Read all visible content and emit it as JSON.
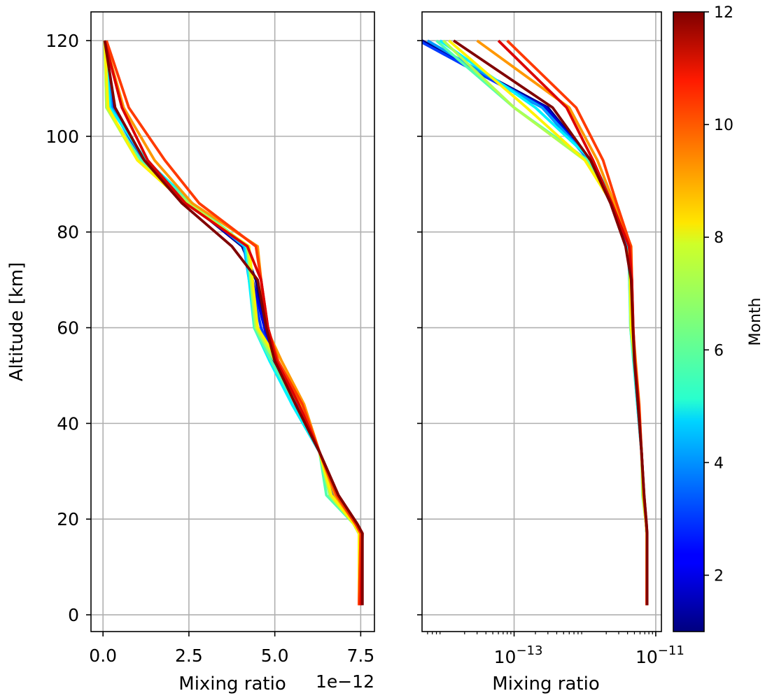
{
  "chart_data": [
    {
      "type": "line",
      "panel": "linear",
      "title": "",
      "xlabel": "Mixing ratio",
      "x_offset_text": "1e−12",
      "ylabel": "Altitude [km]",
      "xlim": [
        -0.35,
        7.9
      ],
      "ylim": [
        -3.5,
        126
      ],
      "x_unit_multiplier": 1e-12,
      "xscale": "linear",
      "xticks": [
        0.0,
        2.5,
        5.0,
        7.5
      ],
      "xtick_labels": [
        "0.0",
        "2.5",
        "5.0",
        "7.5"
      ],
      "yticks": [
        0,
        20,
        40,
        60,
        80,
        100,
        120
      ],
      "ytick_labels": [
        "0",
        "20",
        "40",
        "60",
        "80",
        "100",
        "120"
      ],
      "grid": true,
      "altitude_km": [
        2,
        17,
        19,
        25,
        34,
        44,
        53,
        60,
        70,
        77,
        86,
        95,
        106,
        120
      ],
      "series": [
        {
          "color_value": 1,
          "x": [
            7.45,
            7.45,
            7.3,
            6.8,
            6.3,
            5.6,
            4.95,
            4.7,
            4.45,
            4.05,
            2.5,
            1.2,
            0.3,
            0.05
          ]
        },
        {
          "color_value": 2,
          "x": [
            7.45,
            7.45,
            7.3,
            6.75,
            6.3,
            5.65,
            5.0,
            4.7,
            4.35,
            4.1,
            2.5,
            1.2,
            0.3,
            0.05
          ]
        },
        {
          "color_value": 3,
          "x": [
            7.45,
            7.45,
            7.3,
            6.7,
            6.3,
            5.6,
            5.0,
            4.6,
            4.3,
            4.15,
            2.6,
            1.15,
            0.25,
            0.05
          ]
        },
        {
          "color_value": 4,
          "x": [
            7.45,
            7.45,
            7.3,
            6.6,
            6.3,
            5.5,
            4.9,
            4.5,
            4.25,
            4.1,
            2.6,
            1.2,
            0.25,
            0.05
          ]
        },
        {
          "color_value": 5,
          "x": [
            7.45,
            7.45,
            7.3,
            6.6,
            6.3,
            5.5,
            4.85,
            4.4,
            4.25,
            4.15,
            2.6,
            1.25,
            0.2,
            0.05
          ]
        },
        {
          "color_value": 6,
          "x": [
            7.45,
            7.45,
            7.3,
            6.5,
            6.3,
            5.6,
            4.9,
            4.4,
            4.3,
            4.2,
            2.6,
            1.1,
            0.1,
            0.05
          ]
        },
        {
          "color_value": 7,
          "x": [
            7.45,
            7.45,
            7.3,
            6.6,
            6.3,
            5.7,
            5.0,
            4.45,
            4.3,
            4.2,
            2.5,
            1.0,
            0.1,
            0.05
          ]
        },
        {
          "color_value": 8,
          "x": [
            7.45,
            7.45,
            7.3,
            6.65,
            6.3,
            5.75,
            5.1,
            4.5,
            4.35,
            4.25,
            2.4,
            1.0,
            0.15,
            0.05
          ]
        },
        {
          "color_value": 9,
          "x": [
            7.45,
            7.5,
            7.35,
            6.75,
            6.3,
            5.85,
            5.2,
            4.75,
            4.6,
            4.5,
            2.6,
            1.5,
            0.6,
            0.05
          ]
        },
        {
          "color_value": 10,
          "x": [
            7.45,
            7.5,
            7.35,
            6.8,
            6.3,
            5.8,
            5.1,
            4.8,
            4.6,
            4.45,
            2.8,
            1.8,
            0.75,
            0.1
          ]
        },
        {
          "color_value": 11,
          "x": [
            7.5,
            7.55,
            7.4,
            6.85,
            6.3,
            5.7,
            5.05,
            4.8,
            4.6,
            4.2,
            2.4,
            1.3,
            0.55,
            0.05
          ]
        },
        {
          "color_value": 12,
          "x": [
            7.55,
            7.55,
            7.4,
            6.85,
            6.3,
            5.6,
            5.0,
            4.75,
            4.5,
            3.75,
            2.3,
            1.2,
            0.35,
            0.05
          ]
        }
      ]
    },
    {
      "type": "line",
      "panel": "log",
      "title": "",
      "xlabel": "Mixing ratio",
      "ylabel": "",
      "xscale": "log",
      "xlim_log10": [
        -14.3,
        -10.92
      ],
      "ylim": [
        -3.5,
        126
      ],
      "xticks": [
        1e-13,
        1e-11
      ],
      "xtick_labels": [
        {
          "base": "10",
          "exp": "−13"
        },
        {
          "base": "10",
          "exp": "−11"
        }
      ],
      "yticks": [
        0,
        20,
        40,
        60,
        80,
        100,
        120
      ],
      "grid": true,
      "altitude_km": [
        2,
        17,
        19,
        25,
        34,
        44,
        53,
        60,
        70,
        77,
        86,
        95,
        106,
        120
      ],
      "series": [
        {
          "color_value": 1,
          "x": [
            7.45e-12,
            7.45e-12,
            7.3e-12,
            6.8e-12,
            6.3e-12,
            5.6e-12,
            4.95e-12,
            4.7e-12,
            4.45e-12,
            4.05e-12,
            2.5e-12,
            1.2e-12,
            3e-13,
            5e-15
          ]
        },
        {
          "color_value": 2,
          "x": [
            7.45e-12,
            7.45e-12,
            7.3e-12,
            6.75e-12,
            6.3e-12,
            5.65e-12,
            5e-12,
            4.7e-12,
            4.35e-12,
            4.1e-12,
            2.5e-12,
            1.2e-12,
            2.8e-13,
            4.5e-15
          ]
        },
        {
          "color_value": 3,
          "x": [
            7.45e-12,
            7.45e-12,
            7.3e-12,
            6.7e-12,
            6.3e-12,
            5.6e-12,
            5e-12,
            4.6e-12,
            4.3e-12,
            4.15e-12,
            2.6e-12,
            1.15e-12,
            2.5e-13,
            4.5e-15
          ]
        },
        {
          "color_value": 4,
          "x": [
            7.45e-12,
            7.45e-12,
            7.3e-12,
            6.6e-12,
            6.3e-12,
            5.5e-12,
            4.9e-12,
            4.5e-12,
            4.25e-12,
            4.1e-12,
            2.6e-12,
            1.2e-12,
            2.5e-13,
            6e-15
          ]
        },
        {
          "color_value": 5,
          "x": [
            7.45e-12,
            7.45e-12,
            7.3e-12,
            6.6e-12,
            6.3e-12,
            5.5e-12,
            4.85e-12,
            4.4e-12,
            4.25e-12,
            4.15e-12,
            2.6e-12,
            1.25e-12,
            2e-13,
            9e-15
          ]
        },
        {
          "color_value": 6,
          "x": [
            7.45e-12,
            7.45e-12,
            7.3e-12,
            6.5e-12,
            6.3e-12,
            5.6e-12,
            4.9e-12,
            4.4e-12,
            4.3e-12,
            4.2e-12,
            2.6e-12,
            1.1e-12,
            1e-13,
            8e-15
          ]
        },
        {
          "color_value": 7,
          "x": [
            7.45e-12,
            7.45e-12,
            7.3e-12,
            6.6e-12,
            6.3e-12,
            5.7e-12,
            5e-12,
            4.45e-12,
            4.3e-12,
            4.2e-12,
            2.5e-12,
            1e-12,
            1e-13,
            1e-14
          ]
        },
        {
          "color_value": 8,
          "x": [
            7.45e-12,
            7.45e-12,
            7.3e-12,
            6.65e-12,
            6.3e-12,
            5.75e-12,
            5.1e-12,
            4.5e-12,
            4.35e-12,
            4.25e-12,
            2.4e-12,
            1e-12,
            1.5e-13,
            1.2e-14
          ]
        },
        {
          "color_value": 9,
          "x": [
            7.45e-12,
            7.5e-12,
            7.35e-12,
            6.75e-12,
            6.3e-12,
            5.85e-12,
            5.2e-12,
            4.75e-12,
            4.6e-12,
            4.5e-12,
            2.6e-12,
            1.5e-12,
            6e-13,
            3e-14
          ]
        },
        {
          "color_value": 10,
          "x": [
            7.45e-12,
            7.5e-12,
            7.35e-12,
            6.8e-12,
            6.3e-12,
            5.8e-12,
            5.1e-12,
            4.8e-12,
            4.6e-12,
            4.45e-12,
            2.8e-12,
            1.8e-12,
            7.5e-13,
            8e-14
          ]
        },
        {
          "color_value": 11,
          "x": [
            7.5e-12,
            7.55e-12,
            7.4e-12,
            6.85e-12,
            6.3e-12,
            5.7e-12,
            5.05e-12,
            4.8e-12,
            4.6e-12,
            4.2e-12,
            2.4e-12,
            1.3e-12,
            5.5e-13,
            6e-14
          ]
        },
        {
          "color_value": 12,
          "x": [
            7.55e-12,
            7.55e-12,
            7.4e-12,
            6.85e-12,
            6.3e-12,
            5.6e-12,
            5e-12,
            4.75e-12,
            4.5e-12,
            3.75e-12,
            2.3e-12,
            1.2e-12,
            3.5e-13,
            1.4e-14
          ]
        }
      ]
    }
  ],
  "colorbar": {
    "label": "Month",
    "colormap": "jet",
    "range": [
      1,
      12
    ],
    "ticks": [
      2,
      4,
      6,
      8,
      10,
      12
    ],
    "tick_labels": [
      "2",
      "4",
      "6",
      "8",
      "10",
      "12"
    ]
  }
}
